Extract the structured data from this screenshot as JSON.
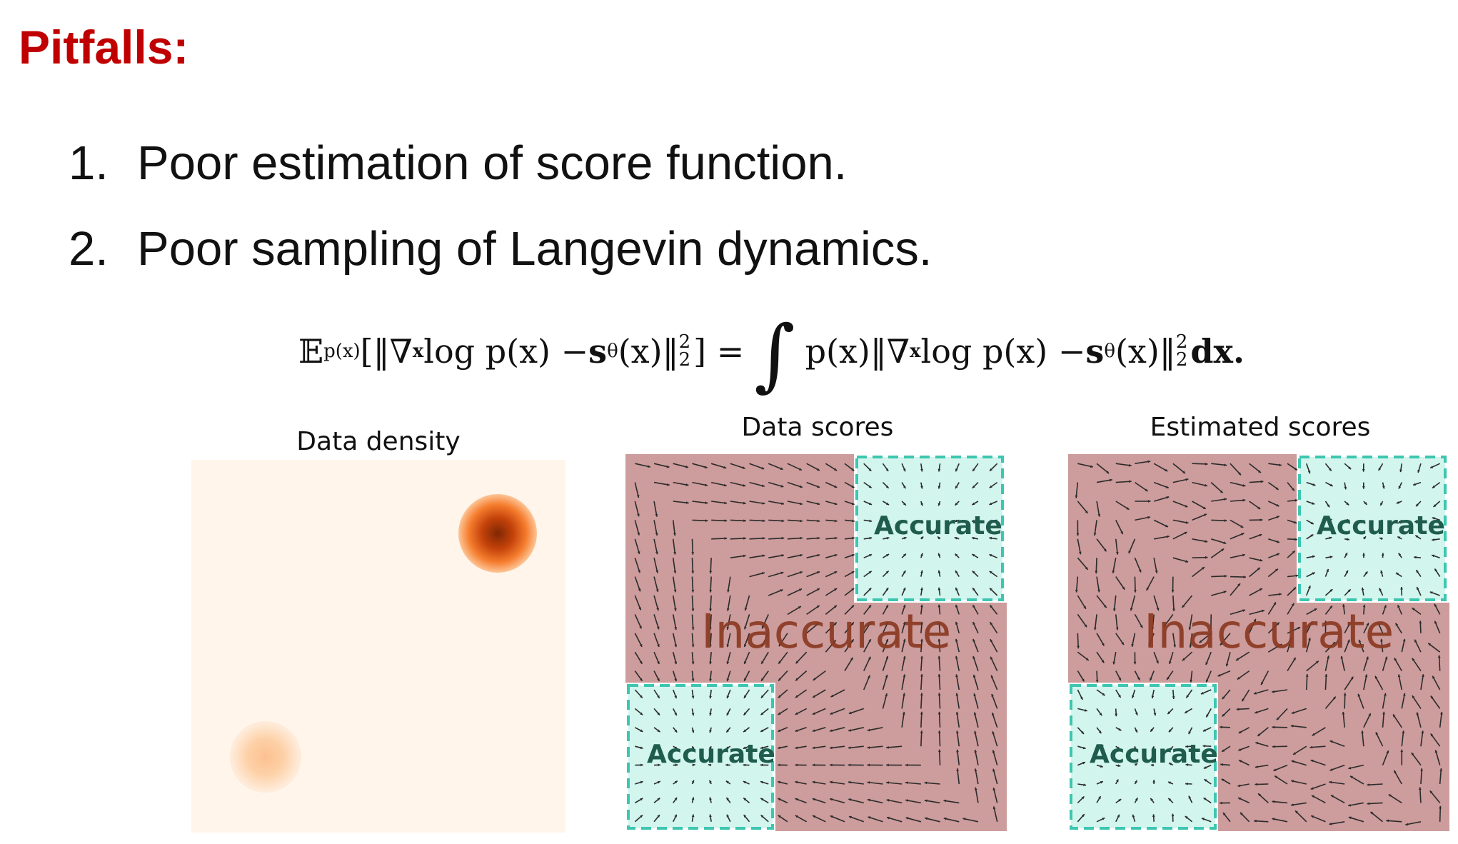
{
  "heading": "Pitfalls:",
  "list": [
    {
      "number": "1.",
      "text": "Poor estimation of score function."
    },
    {
      "number": "2.",
      "text": "Poor sampling of Langevin dynamics."
    }
  ],
  "equation": {
    "lhs_expectation": "𝔼",
    "lhs_sub": "p(x)",
    "lhs_body": "[‖∇",
    "lhs_grad_sub": "x",
    "lhs_mid": " log p(x) − ",
    "lhs_s": "s",
    "lhs_theta": "θ",
    "lhs_end": "(x)‖",
    "lhs_sup_sub": "2",
    "lhs_close": "] =",
    "integral": "∫",
    "rhs_begin": "p(x)‖∇",
    "rhs_grad_sub": "x",
    "rhs_mid": " log p(x) − ",
    "rhs_s": "s",
    "rhs_theta": "θ",
    "rhs_end": "(x)‖",
    "rhs_sup_sub": "2",
    "rhs_close": "dx."
  },
  "panels": {
    "density": {
      "title": "Data density"
    },
    "data_scores": {
      "title": "Data scores",
      "accurate_label": "Accurate",
      "inaccurate_label": "Inaccurate"
    },
    "estimated_scores": {
      "title": "Estimated scores",
      "accurate_label": "Accurate",
      "inaccurate_label": "Inaccurate"
    }
  },
  "colors": {
    "heading": "#c00000",
    "inaccurate_region": "#cd9c9c",
    "accurate_region": "#d2f5ee",
    "accurate_border": "#3dc6b0",
    "density_peak": "#7f2704",
    "density_background": "#fff5eb"
  }
}
